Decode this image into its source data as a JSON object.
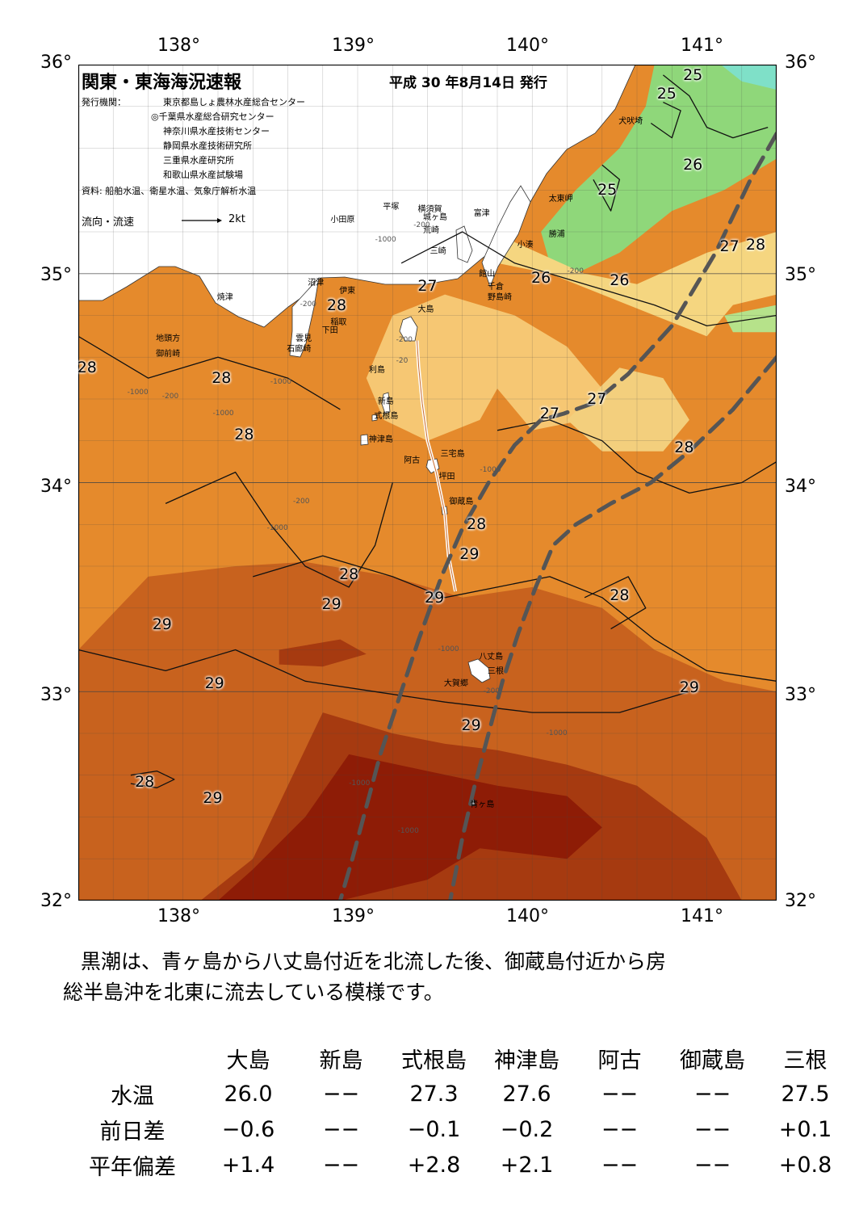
{
  "header": {
    "title": "関東・東海海況速報",
    "issue_date": "平成 30 年8月14日 発行",
    "agencies_label": "発行機関：",
    "agencies": [
      "東京都島しょ農林水産総合センター",
      "◎千葉県水産総合研究センター",
      "神奈川県水産技術センター",
      "静岡県水産技術研究所",
      "三重県水産研究所",
      "和歌山県水産試験場"
    ],
    "source": "資料: 船舶水温、衛星水温、気象庁解析水温",
    "flow_label": "流向・流速",
    "flow_scale": "2kt"
  },
  "axes": {
    "lon_labels": [
      "138°",
      "139°",
      "140°",
      "141°"
    ],
    "lat_labels": [
      "36°",
      "35°",
      "34°",
      "33°",
      "32°"
    ],
    "lon_range": [
      137.5,
      141.5
    ],
    "lat_range": [
      32,
      36
    ]
  },
  "places": [
    {
      "name": "小田原",
      "lon": 139.0,
      "lat": 35.27
    },
    {
      "name": "平塚",
      "lon": 139.3,
      "lat": 35.33
    },
    {
      "name": "横須賀",
      "lon": 139.5,
      "lat": 35.32
    },
    {
      "name": "城ヶ島",
      "lon": 139.53,
      "lat": 35.28
    },
    {
      "name": "荒崎",
      "lon": 139.53,
      "lat": 35.22
    },
    {
      "name": "三崎",
      "lon": 139.57,
      "lat": 35.12
    },
    {
      "name": "富津",
      "lon": 139.82,
      "lat": 35.3
    },
    {
      "name": "館山",
      "lon": 139.85,
      "lat": 35.01
    },
    {
      "name": "千倉",
      "lon": 139.9,
      "lat": 34.95
    },
    {
      "name": "野島崎",
      "lon": 139.9,
      "lat": 34.9
    },
    {
      "name": "小湊",
      "lon": 140.07,
      "lat": 35.15
    },
    {
      "name": "勝浦",
      "lon": 140.25,
      "lat": 35.2
    },
    {
      "name": "太東岬",
      "lon": 140.25,
      "lat": 35.37
    },
    {
      "name": "犬吠埼",
      "lon": 140.65,
      "lat": 35.74
    },
    {
      "name": "沼津",
      "lon": 138.87,
      "lat": 34.97
    },
    {
      "name": "伊東",
      "lon": 139.05,
      "lat": 34.93
    },
    {
      "name": "稲取",
      "lon": 139.0,
      "lat": 34.78
    },
    {
      "name": "下田",
      "lon": 138.95,
      "lat": 34.74
    },
    {
      "name": "雲見",
      "lon": 138.8,
      "lat": 34.7
    },
    {
      "name": "石廊崎",
      "lon": 138.75,
      "lat": 34.65
    },
    {
      "name": "焼津",
      "lon": 138.35,
      "lat": 34.9
    },
    {
      "name": "地頭方",
      "lon": 138.0,
      "lat": 34.7
    },
    {
      "name": "御前崎",
      "lon": 138.0,
      "lat": 34.63
    },
    {
      "name": "大島",
      "lon": 139.5,
      "lat": 34.84
    },
    {
      "name": "利島",
      "lon": 139.22,
      "lat": 34.55
    },
    {
      "name": "新島",
      "lon": 139.27,
      "lat": 34.4
    },
    {
      "name": "式根島",
      "lon": 139.25,
      "lat": 34.33
    },
    {
      "name": "神津島",
      "lon": 139.22,
      "lat": 34.22
    },
    {
      "name": "阿古",
      "lon": 139.42,
      "lat": 34.12
    },
    {
      "name": "三宅島",
      "lon": 139.63,
      "lat": 34.15
    },
    {
      "name": "坪田",
      "lon": 139.62,
      "lat": 34.04
    },
    {
      "name": "御蔵島",
      "lon": 139.68,
      "lat": 33.92
    },
    {
      "name": "八丈島",
      "lon": 139.85,
      "lat": 33.18
    },
    {
      "name": "三根",
      "lon": 139.9,
      "lat": 33.11
    },
    {
      "name": "大賀郷",
      "lon": 139.65,
      "lat": 33.05
    },
    {
      "name": "青ヶ島",
      "lon": 139.8,
      "lat": 32.47
    }
  ],
  "isotherm_labels": [
    {
      "text": "25",
      "lon": 141.02,
      "lat": 35.95
    },
    {
      "text": "25",
      "lon": 140.87,
      "lat": 35.86
    },
    {
      "text": "26",
      "lon": 141.02,
      "lat": 35.52
    },
    {
      "text": "25",
      "lon": 140.53,
      "lat": 35.4
    },
    {
      "text": "27",
      "lon": 141.23,
      "lat": 35.13
    },
    {
      "text": "28",
      "lon": 141.38,
      "lat": 35.14
    },
    {
      "text": "26",
      "lon": 140.15,
      "lat": 34.98
    },
    {
      "text": "26",
      "lon": 140.6,
      "lat": 34.97
    },
    {
      "text": "27",
      "lon": 139.5,
      "lat": 34.94
    },
    {
      "text": "28",
      "lon": 138.98,
      "lat": 34.85
    },
    {
      "text": "28",
      "lon": 137.55,
      "lat": 34.55
    },
    {
      "text": "28",
      "lon": 138.32,
      "lat": 34.5
    },
    {
      "text": "27",
      "lon": 140.47,
      "lat": 34.4
    },
    {
      "text": "27",
      "lon": 140.2,
      "lat": 34.33
    },
    {
      "text": "28",
      "lon": 138.45,
      "lat": 34.23
    },
    {
      "text": "28",
      "lon": 140.97,
      "lat": 34.17
    },
    {
      "text": "28",
      "lon": 139.78,
      "lat": 33.8
    },
    {
      "text": "29",
      "lon": 139.74,
      "lat": 33.66
    },
    {
      "text": "28",
      "lon": 139.05,
      "lat": 33.56
    },
    {
      "text": "28",
      "lon": 140.6,
      "lat": 33.46
    },
    {
      "text": "29",
      "lon": 139.54,
      "lat": 33.45
    },
    {
      "text": "29",
      "lon": 138.95,
      "lat": 33.42
    },
    {
      "text": "29",
      "lon": 137.98,
      "lat": 33.32
    },
    {
      "text": "29",
      "lon": 138.28,
      "lat": 33.04
    },
    {
      "text": "29",
      "lon": 141.0,
      "lat": 33.02
    },
    {
      "text": "29",
      "lon": 139.75,
      "lat": 32.84
    },
    {
      "text": "28",
      "lon": 137.88,
      "lat": 32.57
    },
    {
      "text": "29",
      "lon": 138.27,
      "lat": 32.49
    }
  ],
  "depth_labels": [
    {
      "text": "-200",
      "lon": 139.42,
      "lat": 35.25
    },
    {
      "text": "-1000",
      "lon": 139.2,
      "lat": 35.18
    },
    {
      "text": "-200",
      "lon": 140.3,
      "lat": 35.03
    },
    {
      "text": "-200",
      "lon": 138.77,
      "lat": 34.87
    },
    {
      "text": "-200",
      "lon": 139.32,
      "lat": 34.7
    },
    {
      "text": "-20",
      "lon": 139.32,
      "lat": 34.6
    },
    {
      "text": "-200",
      "lon": 137.98,
      "lat": 34.43
    },
    {
      "text": "-1000",
      "lon": 137.78,
      "lat": 34.45
    },
    {
      "text": "-1000",
      "lon": 138.6,
      "lat": 34.5
    },
    {
      "text": "-1000",
      "lon": 138.27,
      "lat": 34.35
    },
    {
      "text": "-200",
      "lon": 138.73,
      "lat": 33.93
    },
    {
      "text": "-1000",
      "lon": 138.58,
      "lat": 33.8
    },
    {
      "text": "-1000",
      "lon": 139.8,
      "lat": 34.08
    },
    {
      "text": "-1000",
      "lon": 139.56,
      "lat": 33.22
    },
    {
      "text": "-1000",
      "lon": 140.18,
      "lat": 32.82
    },
    {
      "text": "-1000",
      "lon": 139.05,
      "lat": 32.58
    },
    {
      "text": "-1000",
      "lon": 139.33,
      "lat": 32.35
    },
    {
      "text": "-200",
      "lon": 139.82,
      "lat": 33.02
    }
  ],
  "kuroshio_paths": [
    [
      [
        141.5,
        35.67
      ],
      [
        141.35,
        35.45
      ],
      [
        141.15,
        35.1
      ],
      [
        140.9,
        34.75
      ],
      [
        140.65,
        34.52
      ],
      [
        140.45,
        34.38
      ],
      [
        140.28,
        34.33
      ],
      [
        140.15,
        34.3
      ],
      [
        140.0,
        34.18
      ],
      [
        139.85,
        34.0
      ],
      [
        139.7,
        33.78
      ],
      [
        139.58,
        33.55
      ],
      [
        139.45,
        33.25
      ],
      [
        139.33,
        32.95
      ],
      [
        139.23,
        32.7
      ],
      [
        139.15,
        32.45
      ],
      [
        139.07,
        32.2
      ],
      [
        139.0,
        32.0
      ]
    ],
    [
      [
        141.5,
        34.6
      ],
      [
        141.25,
        34.35
      ],
      [
        141.0,
        34.15
      ],
      [
        140.78,
        34.0
      ],
      [
        140.55,
        33.9
      ],
      [
        140.35,
        33.8
      ],
      [
        140.22,
        33.7
      ],
      [
        140.12,
        33.5
      ],
      [
        140.02,
        33.28
      ],
      [
        139.93,
        33.05
      ],
      [
        139.85,
        32.8
      ],
      [
        139.77,
        32.55
      ],
      [
        139.7,
        32.3
      ],
      [
        139.63,
        32.0
      ]
    ]
  ],
  "ship_track": [
    [
      139.44,
      34.68
    ],
    [
      139.45,
      34.55
    ],
    [
      139.47,
      34.38
    ],
    [
      139.5,
      34.2
    ],
    [
      139.55,
      34.05
    ],
    [
      139.6,
      33.85
    ],
    [
      139.62,
      33.65
    ],
    [
      139.66,
      33.48
    ]
  ],
  "zones": [
    {
      "name": "tokyo-bay",
      "value": 24,
      "color": "#fff8e8",
      "points": [
        [
          139.6,
          35.68
        ],
        [
          139.85,
          35.68
        ],
        [
          139.95,
          35.35
        ],
        [
          139.9,
          35.15
        ],
        [
          139.75,
          35.05
        ],
        [
          139.65,
          35.2
        ],
        [
          139.6,
          35.4
        ]
      ]
    },
    {
      "name": "boso-green",
      "value": 25,
      "color": "#8fd77a",
      "points": [
        [
          140.8,
          36.0
        ],
        [
          141.5,
          36.0
        ],
        [
          141.5,
          35.55
        ],
        [
          141.2,
          35.4
        ],
        [
          140.9,
          35.3
        ],
        [
          140.6,
          35.1
        ],
        [
          140.35,
          35.0
        ],
        [
          140.2,
          35.05
        ],
        [
          140.15,
          35.2
        ],
        [
          140.35,
          35.4
        ],
        [
          140.6,
          35.6
        ],
        [
          140.75,
          35.8
        ]
      ]
    },
    {
      "name": "north-cyan",
      "value": 24,
      "color": "#7fe0c8",
      "points": [
        [
          141.18,
          36.0
        ],
        [
          141.5,
          36.0
        ],
        [
          141.5,
          35.88
        ],
        [
          141.3,
          35.92
        ]
      ]
    },
    {
      "name": "sagami-yellow",
      "value": 26,
      "color": "#f5d680",
      "points": [
        [
          139.15,
          35.3
        ],
        [
          139.55,
          35.28
        ],
        [
          139.9,
          35.05
        ],
        [
          140.2,
          35.0
        ],
        [
          140.5,
          34.9
        ],
        [
          140.8,
          34.8
        ],
        [
          141.1,
          34.7
        ],
        [
          141.25,
          34.85
        ],
        [
          141.5,
          34.9
        ],
        [
          141.5,
          35.2
        ],
        [
          141.1,
          35.1
        ],
        [
          140.7,
          34.95
        ],
        [
          140.4,
          35.0
        ],
        [
          140.0,
          35.15
        ],
        [
          139.6,
          35.45
        ],
        [
          139.2,
          35.38
        ]
      ]
    },
    {
      "name": "ne-lightgreen",
      "value": 25,
      "color": "#b6e28a",
      "points": [
        [
          141.2,
          34.8
        ],
        [
          141.5,
          34.85
        ],
        [
          141.5,
          34.72
        ],
        [
          141.25,
          34.72
        ]
      ]
    },
    {
      "name": "izu-yellow",
      "value": 27,
      "color": "#f6c773",
      "points": [
        [
          139.3,
          34.8
        ],
        [
          139.6,
          34.9
        ],
        [
          140.0,
          34.8
        ],
        [
          140.3,
          34.65
        ],
        [
          140.5,
          34.45
        ],
        [
          140.4,
          34.3
        ],
        [
          140.1,
          34.25
        ],
        [
          139.9,
          34.45
        ],
        [
          139.8,
          34.3
        ],
        [
          139.5,
          34.2
        ],
        [
          139.25,
          34.3
        ],
        [
          139.15,
          34.5
        ]
      ]
    },
    {
      "name": "east-yellow",
      "value": 27,
      "color": "#f3cf7d",
      "points": [
        [
          140.3,
          34.3
        ],
        [
          140.6,
          34.55
        ],
        [
          140.85,
          34.5
        ],
        [
          141.0,
          34.3
        ],
        [
          140.85,
          34.15
        ],
        [
          140.5,
          34.15
        ]
      ]
    },
    {
      "name": "warm-29",
      "value": 29,
      "color": "#c8621e",
      "points": [
        [
          137.9,
          33.55
        ],
        [
          138.4,
          33.6
        ],
        [
          138.8,
          33.62
        ],
        [
          139.3,
          33.55
        ],
        [
          139.7,
          33.45
        ],
        [
          140.1,
          33.5
        ],
        [
          140.5,
          33.4
        ],
        [
          140.8,
          33.2
        ],
        [
          141.2,
          33.05
        ],
        [
          141.5,
          33.0
        ],
        [
          141.5,
          32.0
        ],
        [
          137.5,
          32.0
        ],
        [
          137.5,
          33.2
        ]
      ]
    },
    {
      "name": "hot-30",
      "value": 30,
      "color": "#a63a10",
      "points": [
        [
          138.9,
          32.9
        ],
        [
          139.3,
          32.8
        ],
        [
          139.6,
          32.75
        ],
        [
          139.9,
          32.72
        ],
        [
          140.3,
          32.65
        ],
        [
          140.7,
          32.55
        ],
        [
          141.1,
          32.3
        ],
        [
          141.3,
          32.0
        ],
        [
          138.2,
          32.0
        ],
        [
          138.5,
          32.2
        ],
        [
          138.7,
          32.55
        ]
      ]
    },
    {
      "name": "hot-30-b",
      "value": 30,
      "color": "#a63a10",
      "points": [
        [
          138.65,
          33.2
        ],
        [
          139.0,
          33.25
        ],
        [
          139.15,
          33.18
        ],
        [
          138.9,
          33.12
        ],
        [
          138.65,
          33.13
        ]
      ]
    },
    {
      "name": "hottest",
      "value": 31,
      "color": "#8e1c06",
      "points": [
        [
          139.05,
          32.7
        ],
        [
          139.5,
          32.62
        ],
        [
          139.9,
          32.55
        ],
        [
          140.3,
          32.5
        ],
        [
          140.5,
          32.35
        ],
        [
          140.3,
          32.2
        ],
        [
          139.8,
          32.25
        ],
        [
          139.5,
          32.1
        ],
        [
          139.0,
          32.0
        ],
        [
          138.3,
          32.0
        ],
        [
          138.5,
          32.15
        ],
        [
          138.8,
          32.4
        ]
      ]
    }
  ],
  "contours": [
    [
      [
        137.5,
        34.7
      ],
      [
        137.9,
        34.5
      ],
      [
        138.3,
        34.6
      ],
      [
        138.7,
        34.5
      ],
      [
        139.0,
        34.35
      ]
    ],
    [
      [
        138.0,
        33.9
      ],
      [
        138.4,
        34.05
      ],
      [
        138.6,
        33.8
      ],
      [
        138.8,
        33.6
      ],
      [
        139.05,
        33.5
      ],
      [
        139.2,
        33.7
      ],
      [
        139.3,
        34.0
      ]
    ],
    [
      [
        139.9,
        34.25
      ],
      [
        140.2,
        34.3
      ],
      [
        140.5,
        34.2
      ],
      [
        140.7,
        34.05
      ],
      [
        141.0,
        33.95
      ],
      [
        141.3,
        34.0
      ],
      [
        141.5,
        34.1
      ]
    ],
    [
      [
        138.5,
        33.55
      ],
      [
        138.9,
        33.65
      ],
      [
        139.3,
        33.55
      ],
      [
        139.6,
        33.45
      ],
      [
        139.9,
        33.5
      ],
      [
        140.2,
        33.55
      ],
      [
        140.5,
        33.45
      ],
      [
        140.8,
        33.25
      ],
      [
        141.1,
        33.1
      ],
      [
        141.5,
        33.05
      ]
    ],
    [
      [
        137.5,
        33.2
      ],
      [
        138.0,
        33.1
      ],
      [
        138.4,
        33.2
      ],
      [
        138.8,
        33.05
      ],
      [
        139.2,
        33.0
      ],
      [
        139.6,
        32.95
      ],
      [
        140.1,
        32.9
      ],
      [
        140.6,
        32.9
      ],
      [
        141.0,
        33.0
      ]
    ],
    [
      [
        140.4,
        33.45
      ],
      [
        140.65,
        33.55
      ],
      [
        140.75,
        33.4
      ],
      [
        140.55,
        33.3
      ]
    ],
    [
      [
        137.8,
        32.6
      ],
      [
        137.95,
        32.62
      ],
      [
        138.05,
        32.58
      ],
      [
        137.95,
        32.54
      ],
      [
        137.8,
        32.56
      ]
    ],
    [
      [
        140.85,
        35.95
      ],
      [
        141.0,
        35.85
      ],
      [
        141.1,
        35.7
      ],
      [
        141.25,
        35.65
      ],
      [
        141.45,
        35.7
      ]
    ],
    [
      [
        140.45,
        35.45
      ],
      [
        140.55,
        35.3
      ],
      [
        140.6,
        35.45
      ],
      [
        140.5,
        35.52
      ]
    ],
    [
      [
        140.78,
        35.72
      ],
      [
        140.9,
        35.65
      ],
      [
        140.95,
        35.78
      ],
      [
        140.85,
        35.82
      ]
    ],
    [
      [
        139.35,
        35.05
      ],
      [
        139.7,
        35.2
      ],
      [
        140.0,
        35.05
      ],
      [
        140.4,
        34.95
      ],
      [
        140.8,
        34.85
      ],
      [
        141.1,
        34.75
      ],
      [
        141.5,
        34.8
      ]
    ]
  ],
  "summary": {
    "line1": "黒潮は、青ヶ島から八丈島付近を北流した後、御蔵島付近から房",
    "line2": "総半島沖を北東に流去している模様です。"
  },
  "table": {
    "headers": [
      "大島",
      "新島",
      "式根島",
      "神津島",
      "阿古",
      "御蔵島",
      "三根"
    ],
    "rows": [
      {
        "label": "水温",
        "values": [
          "26.0",
          "−−",
          "27.3",
          "27.6",
          "−−",
          "−−",
          "27.5"
        ]
      },
      {
        "label": "前日差",
        "values": [
          "−0.6",
          "−−",
          "−0.1",
          "−0.2",
          "−−",
          "−−",
          "+0.1"
        ]
      },
      {
        "label": "平年偏差",
        "values": [
          "+1.4",
          "−−",
          "+2.8",
          "+2.1",
          "−−",
          "−−",
          "+0.8"
        ]
      }
    ]
  },
  "colors": {
    "base": "#e58a2c",
    "land": "#ffffff",
    "kuroshio": "#555555",
    "grid": "#444444"
  }
}
